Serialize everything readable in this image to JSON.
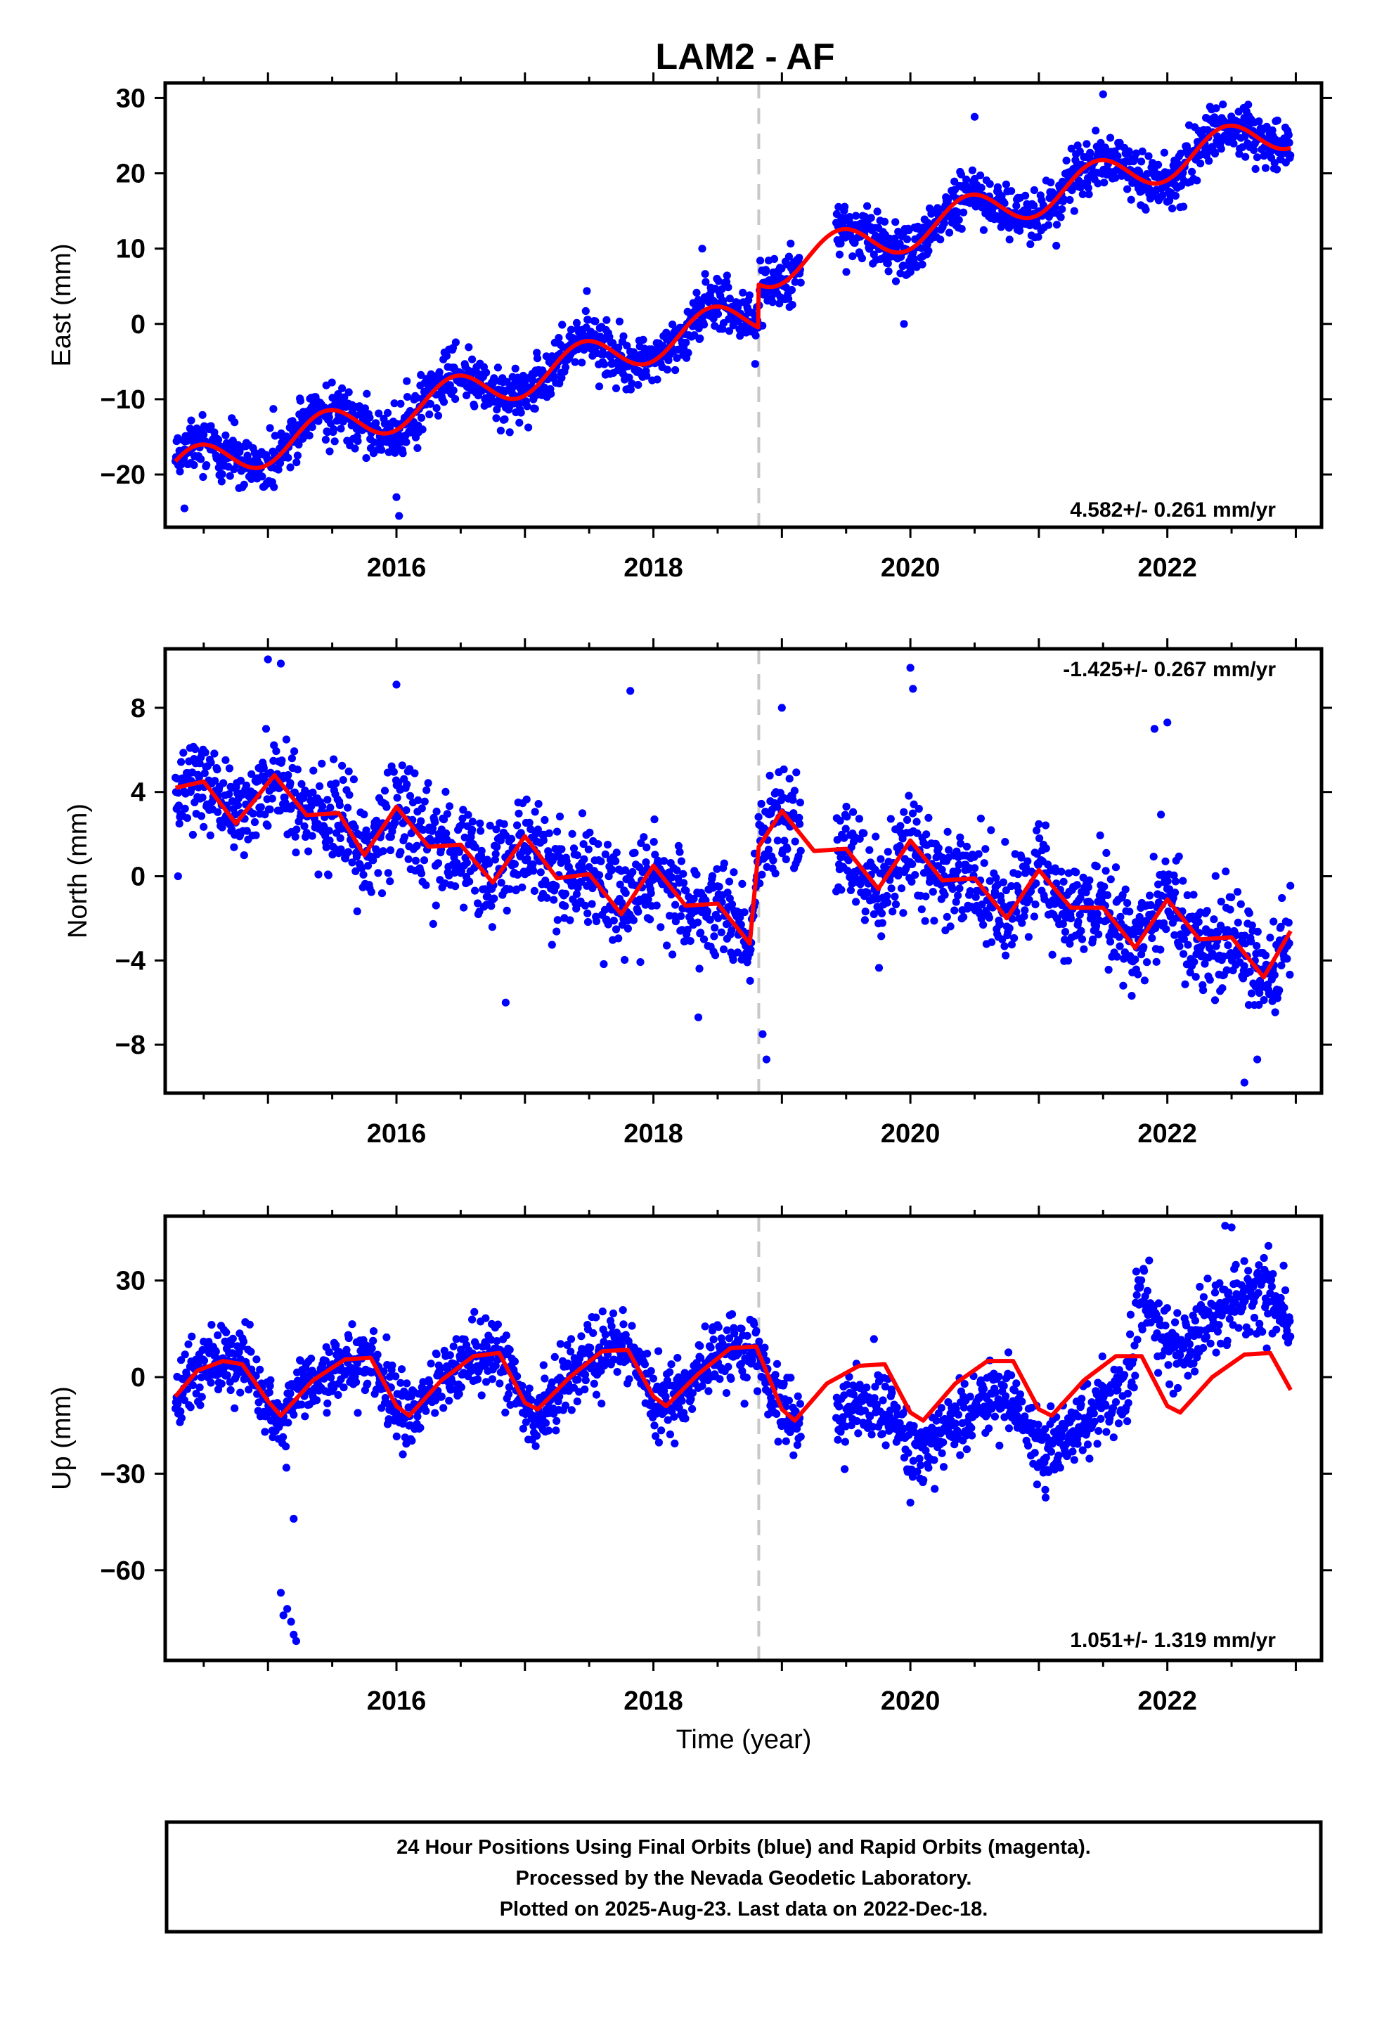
{
  "title": "LAM2 - AF",
  "colors": {
    "obs": "#0000ff",
    "model": "#ff0000",
    "offset_line": "#c8c8c8"
  },
  "footer": {
    "lines": [
      "24 Hour Positions Using Final Orbits (blue) and Rapid Orbits (magenta).",
      "Processed by the Nevada Geodetic Laboratory.",
      "Plotted on 2025-Aug-23. Last data on 2022-Dec-18."
    ]
  },
  "chart_data": [
    {
      "type": "scatter",
      "ylabel": "East (mm)",
      "xlabel": "",
      "rate_label": "4.582+/- 0.261 mm/yr",
      "rate_position": "bottom-right",
      "xlim": [
        2014.2,
        2023.2
      ],
      "ylim": [
        -27,
        32
      ],
      "yticks": [
        -20,
        -10,
        0,
        10,
        20,
        30
      ],
      "xticks": [
        2016,
        2018,
        2020,
        2022
      ],
      "offset_epoch": 2018.82,
      "data_start": 2014.28,
      "data_end": 2022.96,
      "gaps": [
        [
          2019.15,
          2019.42
        ]
      ],
      "series": [
        {
          "name": "model",
          "trend": {
            "t0": 2014.28,
            "v0": -19.5,
            "rate": 4.582
          },
          "annual": {
            "amp": 2.6,
            "peak": 2014.45
          },
          "jumps": [
            {
              "t": 2018.82,
              "dv": 5.7
            }
          ],
          "points": [
            [
              2014.28,
              -18.3
            ],
            [
              2014.5,
              -16.5
            ],
            [
              2014.7,
              -18.2
            ],
            [
              2014.9,
              -20.5
            ],
            [
              2015.1,
              -19.4
            ],
            [
              2015.45,
              -11.7
            ],
            [
              2015.9,
              -15.6
            ],
            [
              2016.0,
              -15.8
            ],
            [
              2016.45,
              -7.2
            ],
            [
              2016.9,
              -11.3
            ],
            [
              2017.45,
              -2.2
            ],
            [
              2017.9,
              -6.5
            ],
            [
              2018.45,
              2.3
            ],
            [
              2018.8,
              -2.3
            ],
            [
              2018.82,
              3.4
            ],
            [
              2019.45,
              12.8
            ],
            [
              2019.9,
              8.0
            ],
            [
              2020.45,
              17.5
            ],
            [
              2020.9,
              12.8
            ],
            [
              2021.45,
              22.0
            ],
            [
              2021.9,
              17.6
            ],
            [
              2022.45,
              26.3
            ],
            [
              2022.96,
              21.9
            ]
          ]
        },
        {
          "name": "observations",
          "scatter_sd": 1.8
        }
      ],
      "outliers": [
        [
          2016.0,
          -23.0
        ],
        [
          2016.02,
          -25.5
        ],
        [
          2014.35,
          -24.5
        ],
        [
          2018.38,
          10.0
        ],
        [
          2019.95,
          0.0
        ],
        [
          2020.5,
          27.5
        ],
        [
          2021.5,
          30.5
        ],
        [
          2022.1,
          15.5
        ]
      ]
    },
    {
      "type": "scatter",
      "ylabel": "North (mm)",
      "xlabel": "",
      "rate_label": "-1.425+/- 0.267 mm/yr",
      "rate_position": "top-right",
      "xlim": [
        2014.2,
        2023.2
      ],
      "ylim": [
        -10.3,
        10.8
      ],
      "yticks": [
        -8,
        -4,
        0,
        4,
        8
      ],
      "xticks": [
        2016,
        2018,
        2020,
        2022
      ],
      "offset_epoch": 2018.82,
      "data_start": 2014.28,
      "data_end": 2022.96,
      "gaps": [
        [
          2019.15,
          2019.42
        ]
      ],
      "series": [
        {
          "name": "model",
          "points": [
            [
              2014.28,
              4.2
            ],
            [
              2014.5,
              4.5
            ],
            [
              2014.75,
              2.5
            ],
            [
              2015.05,
              4.8
            ],
            [
              2015.3,
              2.9
            ],
            [
              2015.55,
              3.0
            ],
            [
              2015.75,
              1.0
            ],
            [
              2016.0,
              3.3
            ],
            [
              2016.25,
              1.4
            ],
            [
              2016.5,
              1.5
            ],
            [
              2016.75,
              -0.3
            ],
            [
              2017.0,
              1.9
            ],
            [
              2017.25,
              -0.1
            ],
            [
              2017.5,
              0.1
            ],
            [
              2017.75,
              -1.8
            ],
            [
              2018.0,
              0.5
            ],
            [
              2018.25,
              -1.4
            ],
            [
              2018.5,
              -1.3
            ],
            [
              2018.75,
              -3.2
            ],
            [
              2018.82,
              1.4
            ],
            [
              2019.0,
              3.1
            ],
            [
              2019.25,
              1.2
            ],
            [
              2019.5,
              1.3
            ],
            [
              2019.75,
              -0.6
            ],
            [
              2020.0,
              1.7
            ],
            [
              2020.25,
              -0.2
            ],
            [
              2020.5,
              -0.1
            ],
            [
              2020.75,
              -2.0
            ],
            [
              2021.0,
              0.3
            ],
            [
              2021.25,
              -1.5
            ],
            [
              2021.5,
              -1.5
            ],
            [
              2021.75,
              -3.4
            ],
            [
              2022.0,
              -1.1
            ],
            [
              2022.25,
              -3.0
            ],
            [
              2022.5,
              -2.9
            ],
            [
              2022.75,
              -4.8
            ],
            [
              2022.96,
              -2.6
            ]
          ]
        },
        {
          "name": "observations",
          "scatter_sd": 1.2
        }
      ],
      "outliers": [
        [
          2015.0,
          10.3
        ],
        [
          2015.1,
          10.1
        ],
        [
          2016.0,
          9.1
        ],
        [
          2017.82,
          8.8
        ],
        [
          2020.0,
          9.9
        ],
        [
          2020.02,
          8.9
        ],
        [
          2021.9,
          7.0
        ],
        [
          2022.0,
          7.3
        ],
        [
          2019.0,
          8.0
        ],
        [
          2018.85,
          -7.5
        ],
        [
          2018.88,
          -8.7
        ],
        [
          2022.6,
          -9.8
        ],
        [
          2022.7,
          -8.7
        ],
        [
          2016.85,
          -6.0
        ],
        [
          2018.35,
          -6.7
        ],
        [
          2014.3,
          0.0
        ]
      ]
    },
    {
      "type": "scatter",
      "ylabel": "Up (mm)",
      "xlabel": "Time (year)",
      "rate_label": "1.051+/- 1.319 mm/yr",
      "rate_position": "bottom-right",
      "xlim": [
        2014.2,
        2023.2
      ],
      "ylim": [
        -88,
        50
      ],
      "yticks": [
        -60,
        -30,
        0,
        30
      ],
      "xticks": [
        2016,
        2018,
        2020,
        2022
      ],
      "offset_epoch": 2018.82,
      "data_start": 2014.28,
      "data_end": 2022.96,
      "gaps": [
        [
          2019.15,
          2019.42
        ]
      ],
      "series": [
        {
          "name": "model",
          "points": [
            [
              2014.28,
              -6.0
            ],
            [
              2014.45,
              2.0
            ],
            [
              2014.65,
              5.0
            ],
            [
              2014.8,
              4.0
            ],
            [
              2015.0,
              -7.5
            ],
            [
              2015.1,
              -12.0
            ],
            [
              2015.35,
              -1.0
            ],
            [
              2015.6,
              5.5
            ],
            [
              2015.8,
              6.0
            ],
            [
              2016.0,
              -9.0
            ],
            [
              2016.1,
              -12.0
            ],
            [
              2016.35,
              -1.0
            ],
            [
              2016.6,
              6.5
            ],
            [
              2016.8,
              7.5
            ],
            [
              2017.0,
              -8.0
            ],
            [
              2017.1,
              -10.0
            ],
            [
              2017.35,
              0.0
            ],
            [
              2017.6,
              8.0
            ],
            [
              2017.8,
              8.5
            ],
            [
              2018.0,
              -6.0
            ],
            [
              2018.1,
              -9.0
            ],
            [
              2018.35,
              1.0
            ],
            [
              2018.6,
              9.0
            ],
            [
              2018.8,
              9.5
            ],
            [
              2019.0,
              -10.0
            ],
            [
              2019.1,
              -13.5
            ],
            [
              2019.35,
              -2.0
            ],
            [
              2019.6,
              3.5
            ],
            [
              2019.8,
              4.0
            ],
            [
              2020.0,
              -11.0
            ],
            [
              2020.1,
              -13.5
            ],
            [
              2020.35,
              -2.0
            ],
            [
              2020.6,
              5.0
            ],
            [
              2020.8,
              5.0
            ],
            [
              2021.0,
              -10.0
            ],
            [
              2021.1,
              -12.0
            ],
            [
              2021.35,
              -1.0
            ],
            [
              2021.6,
              6.5
            ],
            [
              2021.8,
              6.5
            ],
            [
              2022.0,
              -9.0
            ],
            [
              2022.1,
              -11.0
            ],
            [
              2022.35,
              0.0
            ],
            [
              2022.6,
              7.0
            ],
            [
              2022.8,
              7.5
            ],
            [
              2022.96,
              -4.0
            ]
          ]
        },
        {
          "name": "observations",
          "scatter_sd": 5.5
        }
      ],
      "outliers": [
        [
          2015.1,
          -67.0
        ],
        [
          2015.15,
          -72.0
        ],
        [
          2015.2,
          -80.0
        ],
        [
          2015.18,
          -76.0
        ],
        [
          2015.12,
          -74.0
        ],
        [
          2015.22,
          -82.0
        ],
        [
          2015.2,
          -44.0
        ],
        [
          2016.05,
          -24.0
        ],
        [
          2022.45,
          47.0
        ],
        [
          2022.5,
          46.5
        ],
        [
          2020.0,
          -39.0
        ],
        [
          2021.05,
          -35.0
        ]
      ]
    }
  ]
}
